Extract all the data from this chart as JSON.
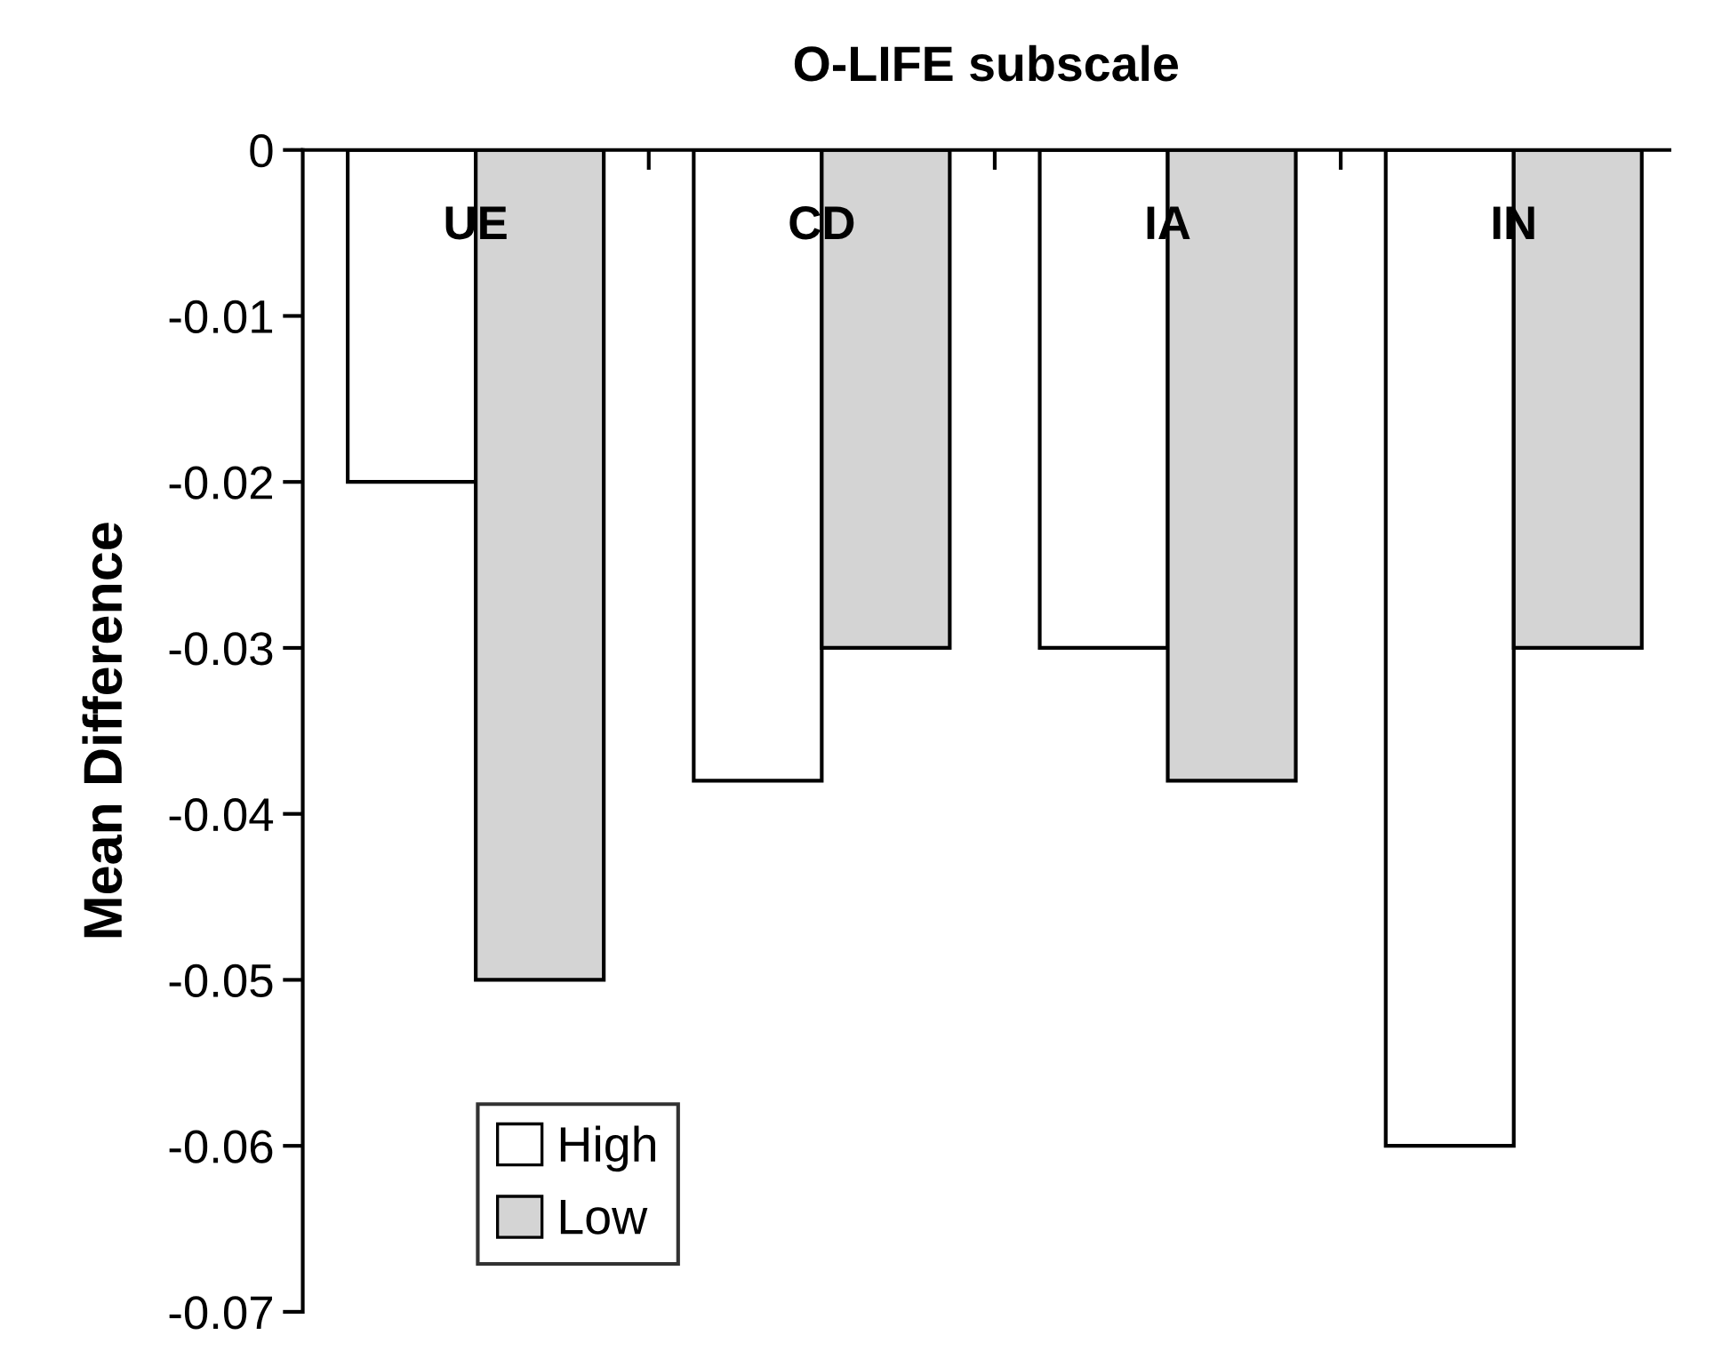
{
  "chart_data": {
    "type": "bar",
    "title": "O-LIFE subscale",
    "ylabel": "Mean Difference",
    "categories": [
      "UE",
      "CD",
      "IA",
      "IN"
    ],
    "series": [
      {
        "name": "High",
        "color": "#ffffff",
        "values": [
          -0.02,
          -0.038,
          -0.03,
          -0.06
        ]
      },
      {
        "name": "Low",
        "color": "#d4d4d4",
        "values": [
          -0.05,
          -0.03,
          -0.038,
          -0.03
        ]
      }
    ],
    "ylim": [
      -0.07,
      0
    ],
    "yticks": [
      0,
      -0.01,
      -0.02,
      -0.03,
      -0.04,
      -0.05,
      -0.06,
      -0.07
    ],
    "grid": false,
    "legend": "bottom left"
  }
}
